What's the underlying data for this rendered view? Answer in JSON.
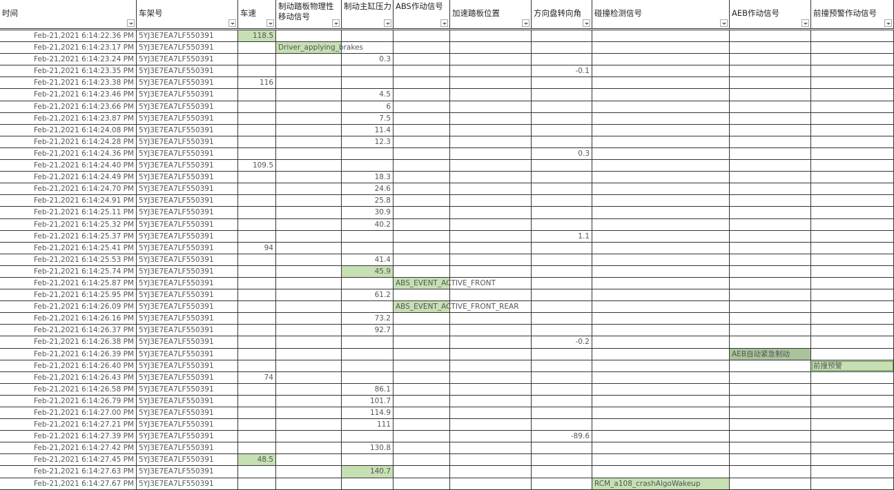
{
  "headers": [
    "时间",
    "车架号",
    "车速",
    "制动踏板物理性移动信号",
    "制动主缸压力",
    "ABS作动信号",
    "加速踏板位置",
    "方向盘转向角",
    "碰撞检测信号",
    "AEB作动信号",
    "前撞预警作动信号"
  ],
  "highlight_color": "#c6e0b4",
  "vin": "5YJ3E7EA7LF550391",
  "rows": [
    {
      "time": "Feb-21,2021 6:14:22.36 PM",
      "col": 2,
      "value": "118.5",
      "hl": true
    },
    {
      "time": "Feb-21,2021 6:14:23.17 PM",
      "col": 3,
      "value": "Driver_applying_brakes",
      "hl": true
    },
    {
      "time": "Feb-21,2021 6:14:23.24 PM",
      "col": 4,
      "value": "0.3"
    },
    {
      "time": "Feb-21,2021 6:14:23.35 PM",
      "col": 7,
      "value": "-0.1"
    },
    {
      "time": "Feb-21,2021 6:14:23.38 PM",
      "col": 2,
      "value": "116"
    },
    {
      "time": "Feb-21,2021 6:14:23.46 PM",
      "col": 4,
      "value": "4.5"
    },
    {
      "time": "Feb-21,2021 6:14:23.66 PM",
      "col": 4,
      "value": "6"
    },
    {
      "time": "Feb-21,2021 6:14:23.87 PM",
      "col": 4,
      "value": "7.5"
    },
    {
      "time": "Feb-21,2021 6:14:24.08 PM",
      "col": 4,
      "value": "11.4"
    },
    {
      "time": "Feb-21,2021 6:14:24.28 PM",
      "col": 4,
      "value": "12.3"
    },
    {
      "time": "Feb-21,2021 6:14:24.36 PM",
      "col": 7,
      "value": "0.3"
    },
    {
      "time": "Feb-21,2021 6:14:24.40 PM",
      "col": 2,
      "value": "109.5"
    },
    {
      "time": "Feb-21,2021 6:14:24.49 PM",
      "col": 4,
      "value": "18.3"
    },
    {
      "time": "Feb-21,2021 6:14:24.70 PM",
      "col": 4,
      "value": "24.6"
    },
    {
      "time": "Feb-21,2021 6:14:24.91 PM",
      "col": 4,
      "value": "25.8"
    },
    {
      "time": "Feb-21,2021 6:14:25.11 PM",
      "col": 4,
      "value": "30.9"
    },
    {
      "time": "Feb-21,2021 6:14:25.32 PM",
      "col": 4,
      "value": "40.2"
    },
    {
      "time": "Feb-21,2021 6:14:25.37 PM",
      "col": 7,
      "value": "1.1"
    },
    {
      "time": "Feb-21,2021 6:14:25.41 PM",
      "col": 2,
      "value": "94"
    },
    {
      "time": "Feb-21,2021 6:14:25.53 PM",
      "col": 4,
      "value": "41.4"
    },
    {
      "time": "Feb-21,2021 6:14:25.74 PM",
      "col": 4,
      "value": "45.9",
      "hl": true
    },
    {
      "time": "Feb-21,2021 6:14:25.87 PM",
      "col": 5,
      "value": "ABS_EVENT_ACTIVE_FRONT",
      "hl": true
    },
    {
      "time": "Feb-21,2021 6:14:25.95 PM",
      "col": 4,
      "value": "61.2"
    },
    {
      "time": "Feb-21,2021 6:14:26.09 PM",
      "col": 5,
      "value": "ABS_EVENT_ACTIVE_FRONT_REAR",
      "hl": true
    },
    {
      "time": "Feb-21,2021 6:14:26.16 PM",
      "col": 4,
      "value": "73.2"
    },
    {
      "time": "Feb-21,2021 6:14:26.37 PM",
      "col": 4,
      "value": "92.7"
    },
    {
      "time": "Feb-21,2021 6:14:26.38 PM",
      "col": 7,
      "value": "-0.2"
    },
    {
      "time": "Feb-21,2021 6:14:26.39 PM",
      "col": 9,
      "value": "AEB自动紧急制动",
      "hl": "dark"
    },
    {
      "time": "Feb-21,2021 6:14:26.40 PM",
      "col": 10,
      "value": "前撞预警",
      "hl": "outline"
    },
    {
      "time": "Feb-21,2021 6:14:26.43 PM",
      "col": 2,
      "value": "74"
    },
    {
      "time": "Feb-21,2021 6:14:26.58 PM",
      "col": 4,
      "value": "86.1"
    },
    {
      "time": "Feb-21,2021 6:14:26.79 PM",
      "col": 4,
      "value": "101.7"
    },
    {
      "time": "Feb-21,2021 6:14:27.00 PM",
      "col": 4,
      "value": "114.9"
    },
    {
      "time": "Feb-21,2021 6:14:27.21 PM",
      "col": 4,
      "value": "111"
    },
    {
      "time": "Feb-21,2021 6:14:27.39 PM",
      "col": 7,
      "value": "-89.6"
    },
    {
      "time": "Feb-21,2021 6:14:27.42 PM",
      "col": 4,
      "value": "130.8"
    },
    {
      "time": "Feb-21,2021 6:14:27.45 PM",
      "col": 2,
      "value": "48.5",
      "hl": true
    },
    {
      "time": "Feb-21,2021 6:14:27.63 PM",
      "col": 4,
      "value": "140.7",
      "hl": true
    },
    {
      "time": "Feb-21,2021 6:14:27.67 PM",
      "col": 8,
      "value": "RCM_a108_crashAlgoWakeup",
      "hl": true
    }
  ]
}
